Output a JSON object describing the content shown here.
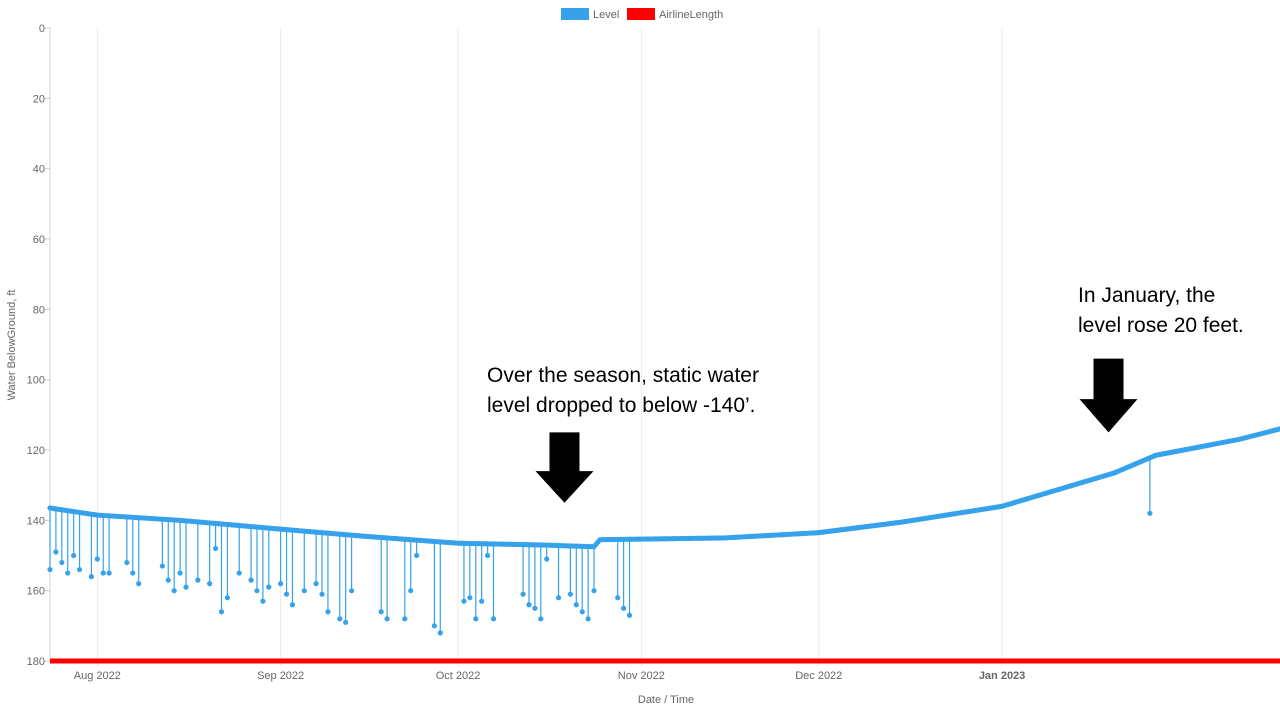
{
  "chart_data": {
    "type": "line",
    "title": "",
    "xlabel": "Date / Time",
    "ylabel": "Water BelowGround, ft",
    "y_reversed": true,
    "ylim": [
      0,
      180
    ],
    "xlim": [
      "2022-07-24",
      "2023-02-17"
    ],
    "grid": "vertical",
    "legend_position": "top",
    "y_ticks": [
      "0",
      "20",
      "40",
      "60",
      "80",
      "100",
      "120",
      "140",
      "160",
      "180"
    ],
    "x_ticks": [
      {
        "date": "2022-08-01",
        "label": "Aug 2022",
        "highlight": false
      },
      {
        "date": "2022-09-01",
        "label": "Sep 2022",
        "highlight": false
      },
      {
        "date": "2022-10-01",
        "label": "Oct 2022",
        "highlight": false
      },
      {
        "date": "2022-11-01",
        "label": "Nov 2022",
        "highlight": false
      },
      {
        "date": "2022-12-01",
        "label": "Dec 2022",
        "highlight": false
      },
      {
        "date": "2023-01-01",
        "label": "Jan 2023",
        "highlight": true
      }
    ],
    "series": [
      {
        "name": "Level",
        "color": "#36a2eb",
        "baseline": [
          {
            "x": "2022-07-24",
            "y": 136.5
          },
          {
            "x": "2022-08-01",
            "y": 138.5
          },
          {
            "x": "2022-08-15",
            "y": 140.0
          },
          {
            "x": "2022-09-01",
            "y": 142.5
          },
          {
            "x": "2022-09-15",
            "y": 144.5
          },
          {
            "x": "2022-10-01",
            "y": 146.5
          },
          {
            "x": "2022-10-15",
            "y": 147.0
          },
          {
            "x": "2022-10-24",
            "y": 147.5
          },
          {
            "x": "2022-10-25",
            "y": 145.5
          },
          {
            "x": "2022-11-15",
            "y": 145.0
          },
          {
            "x": "2022-12-01",
            "y": 143.5
          },
          {
            "x": "2022-12-15",
            "y": 140.5
          },
          {
            "x": "2023-01-01",
            "y": 136.0
          },
          {
            "x": "2023-01-10",
            "y": 131.5
          },
          {
            "x": "2023-01-20",
            "y": 126.5
          },
          {
            "x": "2023-01-27",
            "y": 121.5
          },
          {
            "x": "2023-02-10",
            "y": 117.0
          },
          {
            "x": "2023-02-17",
            "y": 114.0
          }
        ],
        "drawdowns": [
          {
            "x": "2022-07-24",
            "y": 154
          },
          {
            "x": "2022-07-25",
            "y": 149
          },
          {
            "x": "2022-07-26",
            "y": 152
          },
          {
            "x": "2022-07-27",
            "y": 155
          },
          {
            "x": "2022-07-28",
            "y": 150
          },
          {
            "x": "2022-07-29",
            "y": 154
          },
          {
            "x": "2022-07-31",
            "y": 156
          },
          {
            "x": "2022-08-01",
            "y": 151
          },
          {
            "x": "2022-08-02",
            "y": 155
          },
          {
            "x": "2022-08-03",
            "y": 155
          },
          {
            "x": "2022-08-06",
            "y": 152
          },
          {
            "x": "2022-08-07",
            "y": 155
          },
          {
            "x": "2022-08-08",
            "y": 158
          },
          {
            "x": "2022-08-12",
            "y": 153
          },
          {
            "x": "2022-08-13",
            "y": 157
          },
          {
            "x": "2022-08-14",
            "y": 160
          },
          {
            "x": "2022-08-15",
            "y": 155
          },
          {
            "x": "2022-08-16",
            "y": 159
          },
          {
            "x": "2022-08-18",
            "y": 157
          },
          {
            "x": "2022-08-20",
            "y": 158
          },
          {
            "x": "2022-08-21",
            "y": 148
          },
          {
            "x": "2022-08-22",
            "y": 166
          },
          {
            "x": "2022-08-23",
            "y": 162
          },
          {
            "x": "2022-08-25",
            "y": 155
          },
          {
            "x": "2022-08-27",
            "y": 157
          },
          {
            "x": "2022-08-28",
            "y": 160
          },
          {
            "x": "2022-08-29",
            "y": 163
          },
          {
            "x": "2022-08-30",
            "y": 159
          },
          {
            "x": "2022-09-01",
            "y": 158
          },
          {
            "x": "2022-09-02",
            "y": 161
          },
          {
            "x": "2022-09-03",
            "y": 164
          },
          {
            "x": "2022-09-05",
            "y": 160
          },
          {
            "x": "2022-09-07",
            "y": 158
          },
          {
            "x": "2022-09-08",
            "y": 161
          },
          {
            "x": "2022-09-09",
            "y": 166
          },
          {
            "x": "2022-09-11",
            "y": 168
          },
          {
            "x": "2022-09-12",
            "y": 169
          },
          {
            "x": "2022-09-13",
            "y": 160
          },
          {
            "x": "2022-09-18",
            "y": 166
          },
          {
            "x": "2022-09-19",
            "y": 168
          },
          {
            "x": "2022-09-22",
            "y": 168
          },
          {
            "x": "2022-09-23",
            "y": 160
          },
          {
            "x": "2022-09-24",
            "y": 150
          },
          {
            "x": "2022-09-27",
            "y": 170
          },
          {
            "x": "2022-09-28",
            "y": 172
          },
          {
            "x": "2022-10-02",
            "y": 163
          },
          {
            "x": "2022-10-03",
            "y": 162
          },
          {
            "x": "2022-10-04",
            "y": 168
          },
          {
            "x": "2022-10-05",
            "y": 163
          },
          {
            "x": "2022-10-06",
            "y": 150
          },
          {
            "x": "2022-10-07",
            "y": 168
          },
          {
            "x": "2022-10-12",
            "y": 161
          },
          {
            "x": "2022-10-13",
            "y": 164
          },
          {
            "x": "2022-10-14",
            "y": 165
          },
          {
            "x": "2022-10-15",
            "y": 168
          },
          {
            "x": "2022-10-16",
            "y": 151
          },
          {
            "x": "2022-10-18",
            "y": 162
          },
          {
            "x": "2022-10-20",
            "y": 161
          },
          {
            "x": "2022-10-21",
            "y": 164
          },
          {
            "x": "2022-10-22",
            "y": 166
          },
          {
            "x": "2022-10-23",
            "y": 168
          },
          {
            "x": "2022-10-24",
            "y": 160
          },
          {
            "x": "2022-10-28",
            "y": 162
          },
          {
            "x": "2022-10-29",
            "y": 165
          },
          {
            "x": "2022-10-30",
            "y": 167
          },
          {
            "x": "2023-01-26",
            "y": 138
          }
        ]
      },
      {
        "name": "AirlineLength",
        "color": "#ff0000",
        "values": [
          {
            "x": "2022-07-24",
            "y": 180
          },
          {
            "x": "2023-02-17",
            "y": 180
          }
        ]
      }
    ],
    "annotations": [
      {
        "text": "Over the season, static water\nlevel dropped to below -140’.",
        "arrow_x": "2022-10-19",
        "arrow_y_top": 115,
        "arrow_y_bottom": 135
      },
      {
        "text": "In January, the\nlevel rose 20 feet.",
        "arrow_x": "2023-01-19",
        "arrow_y_top": 94,
        "arrow_y_bottom": 115
      }
    ]
  }
}
